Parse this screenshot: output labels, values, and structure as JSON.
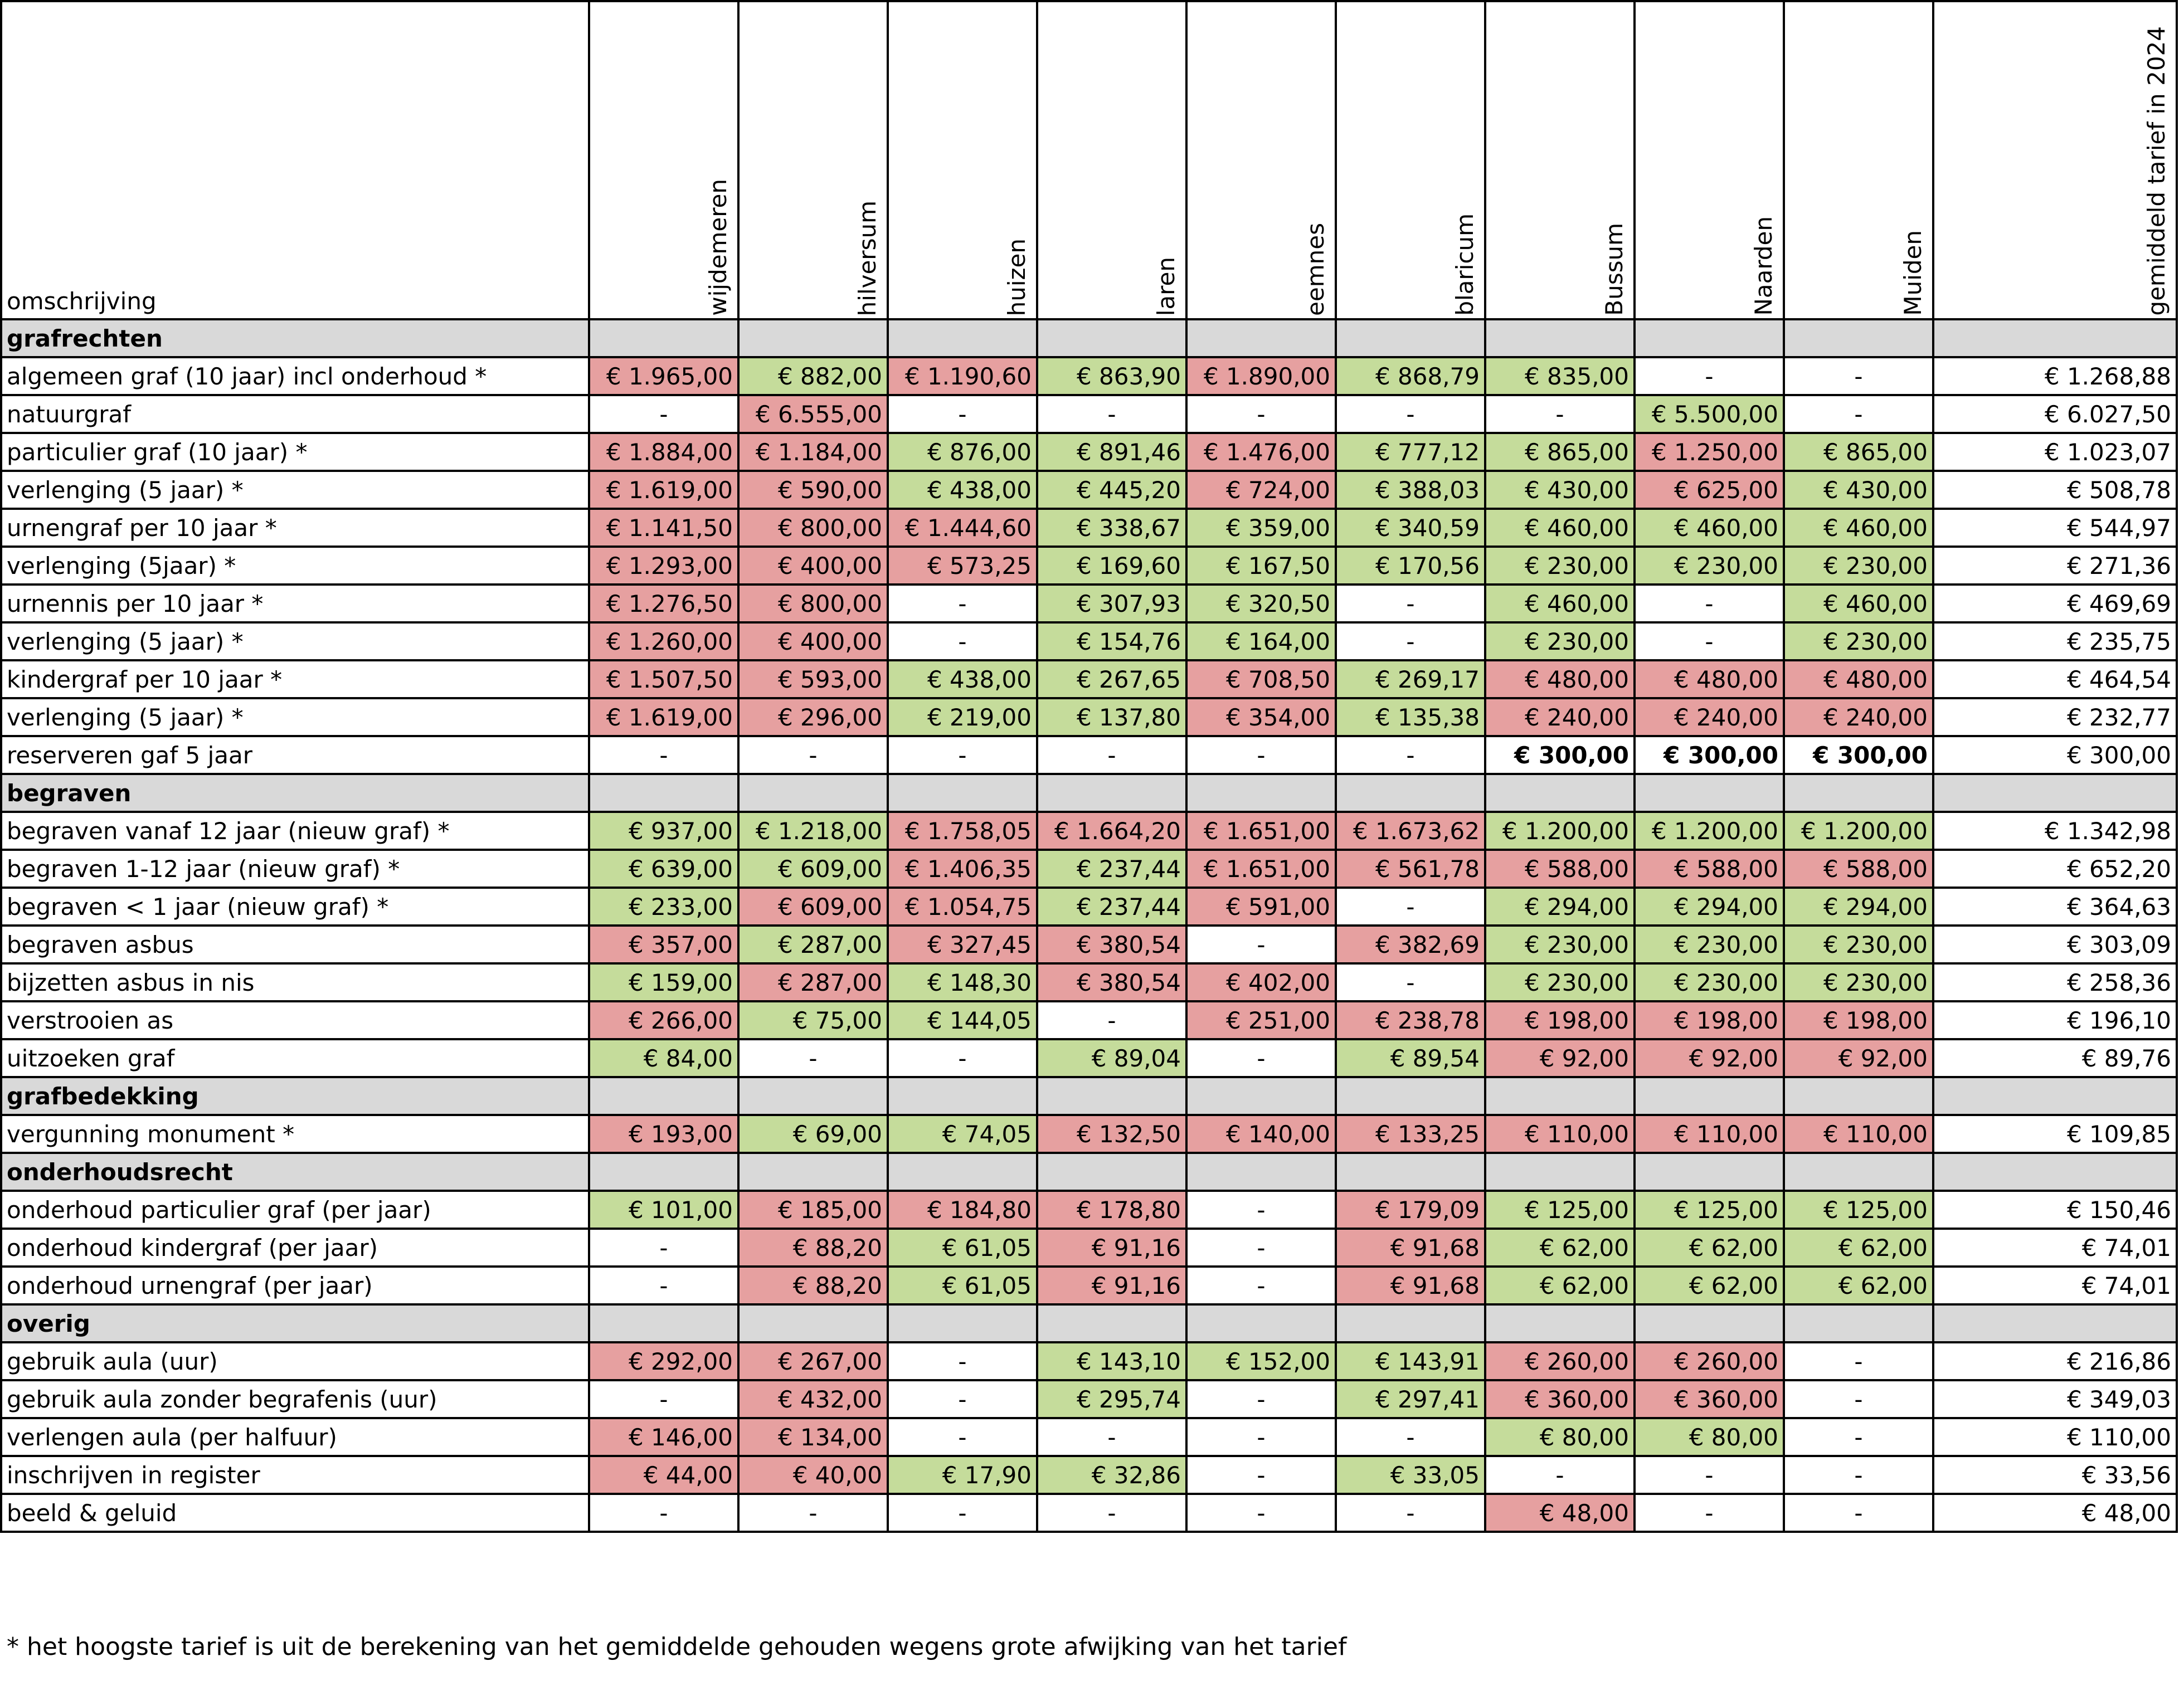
{
  "header": {
    "description_label": "omschrijving",
    "columns": [
      "wijdemeren",
      "hilversum",
      "huizen",
      "laren",
      "eemnes",
      "blaricum",
      "Bussum",
      "Naarden",
      "Muiden"
    ],
    "average_label": "gemiddeld tarief in 2024"
  },
  "legend_colors": {
    "higher_than_average": "#e6a0a0",
    "lower_than_average": "#c5dc9b",
    "section_header": "#d9d9d9"
  },
  "sections": [
    {
      "title": "grafrechten",
      "rows": [
        {
          "label": "algemeen graf (10 jaar) incl onderhoud *",
          "values": [
            "€ 1.965,00",
            "€ 882,00",
            "€ 1.190,60",
            "€ 863,90",
            "€ 1.890,00",
            "€ 868,79",
            "€ 835,00",
            "-",
            "-"
          ],
          "colors": [
            "r",
            "g",
            "r",
            "g",
            "r",
            "g",
            "g",
            "",
            ""
          ],
          "average": "€ 1.268,88"
        },
        {
          "label": "natuurgraf",
          "values": [
            "-",
            "€ 6.555,00",
            "-",
            "-",
            "-",
            "-",
            "-",
            "€ 5.500,00",
            "-"
          ],
          "colors": [
            "",
            "r",
            "",
            "",
            "",
            "",
            "",
            "g",
            ""
          ],
          "average": "€ 6.027,50"
        },
        {
          "label": "particulier graf (10 jaar) *",
          "values": [
            "€ 1.884,00",
            "€ 1.184,00",
            "€ 876,00",
            "€ 891,46",
            "€ 1.476,00",
            "€ 777,12",
            "€ 865,00",
            "€ 1.250,00",
            "€ 865,00"
          ],
          "colors": [
            "r",
            "r",
            "g",
            "g",
            "r",
            "g",
            "g",
            "r",
            "g"
          ],
          "average": "€ 1.023,07"
        },
        {
          "label": "verlenging (5 jaar) *",
          "values": [
            "€ 1.619,00",
            "€ 590,00",
            "€ 438,00",
            "€ 445,20",
            "€ 724,00",
            "€ 388,03",
            "€ 430,00",
            "€ 625,00",
            "€ 430,00"
          ],
          "colors": [
            "r",
            "r",
            "g",
            "g",
            "r",
            "g",
            "g",
            "r",
            "g"
          ],
          "average": "€ 508,78"
        },
        {
          "label": "urnengraf per 10 jaar *",
          "values": [
            "€ 1.141,50",
            "€ 800,00",
            "€ 1.444,60",
            "€ 338,67",
            "€ 359,00",
            "€ 340,59",
            "€ 460,00",
            "€ 460,00",
            "€ 460,00"
          ],
          "colors": [
            "r",
            "r",
            "r",
            "g",
            "g",
            "g",
            "g",
            "g",
            "g"
          ],
          "average": "€ 544,97"
        },
        {
          "label": "verlenging (5jaar) *",
          "values": [
            "€ 1.293,00",
            "€ 400,00",
            "€ 573,25",
            "€ 169,60",
            "€ 167,50",
            "€ 170,56",
            "€ 230,00",
            "€ 230,00",
            "€ 230,00"
          ],
          "colors": [
            "r",
            "r",
            "r",
            "g",
            "g",
            "g",
            "g",
            "g",
            "g"
          ],
          "average": "€ 271,36"
        },
        {
          "label": "urnennis per 10 jaar *",
          "values": [
            "€ 1.276,50",
            "€ 800,00",
            "-",
            "€ 307,93",
            "€ 320,50",
            "-",
            "€ 460,00",
            "-",
            "€ 460,00"
          ],
          "colors": [
            "r",
            "r",
            "",
            "g",
            "g",
            "",
            "g",
            "",
            "g"
          ],
          "average": "€ 469,69"
        },
        {
          "label": "verlenging (5 jaar) *",
          "values": [
            "€ 1.260,00",
            "€ 400,00",
            "-",
            "€ 154,76",
            "€ 164,00",
            "-",
            "€ 230,00",
            "-",
            "€ 230,00"
          ],
          "colors": [
            "r",
            "r",
            "",
            "g",
            "g",
            "",
            "g",
            "",
            "g"
          ],
          "average": "€ 235,75"
        },
        {
          "label": "kindergraf per 10 jaar *",
          "values": [
            "€ 1.507,50",
            "€ 593,00",
            "€ 438,00",
            "€ 267,65",
            "€ 708,50",
            "€ 269,17",
            "€ 480,00",
            "€ 480,00",
            "€ 480,00"
          ],
          "colors": [
            "r",
            "r",
            "g",
            "g",
            "r",
            "g",
            "r",
            "r",
            "r"
          ],
          "average": "€ 464,54"
        },
        {
          "label": "verlenging (5 jaar) *",
          "values": [
            "€ 1.619,00",
            "€ 296,00",
            "€ 219,00",
            "€ 137,80",
            "€ 354,00",
            "€ 135,38",
            "€ 240,00",
            "€ 240,00",
            "€ 240,00"
          ],
          "colors": [
            "r",
            "r",
            "g",
            "g",
            "r",
            "g",
            "r",
            "r",
            "r"
          ],
          "average": "€ 232,77"
        },
        {
          "label": "reserveren gaf 5 jaar",
          "values": [
            "-",
            "-",
            "-",
            "-",
            "-",
            "-",
            "€ 300,00",
            "€ 300,00",
            "€ 300,00"
          ],
          "colors": [
            "",
            "",
            "",
            "",
            "",
            "",
            "b",
            "b",
            "b"
          ],
          "average": "€ 300,00"
        }
      ]
    },
    {
      "title": "begraven",
      "rows": [
        {
          "label": "begraven vanaf 12 jaar (nieuw graf) *",
          "values": [
            "€ 937,00",
            "€ 1.218,00",
            "€ 1.758,05",
            "€ 1.664,20",
            "€ 1.651,00",
            "€ 1.673,62",
            "€ 1.200,00",
            "€ 1.200,00",
            "€ 1.200,00"
          ],
          "colors": [
            "g",
            "g",
            "r",
            "r",
            "r",
            "r",
            "g",
            "g",
            "g"
          ],
          "average": "€ 1.342,98"
        },
        {
          "label": "begraven 1-12 jaar (nieuw graf) *",
          "values": [
            "€ 639,00",
            "€ 609,00",
            "€ 1.406,35",
            "€ 237,44",
            "€ 1.651,00",
            "€ 561,78",
            "€ 588,00",
            "€ 588,00",
            "€ 588,00"
          ],
          "colors": [
            "g",
            "g",
            "r",
            "g",
            "r",
            "r",
            "r",
            "r",
            "r"
          ],
          "average": "€ 652,20"
        },
        {
          "label": "begraven < 1 jaar (nieuw graf) *",
          "values": [
            "€ 233,00",
            "€ 609,00",
            "€ 1.054,75",
            "€ 237,44",
            "€ 591,00",
            "-",
            "€ 294,00",
            "€ 294,00",
            "€ 294,00"
          ],
          "colors": [
            "g",
            "r",
            "r",
            "g",
            "r",
            "",
            "g",
            "g",
            "g"
          ],
          "average": "€ 364,63"
        },
        {
          "label": "begraven asbus",
          "values": [
            "€ 357,00",
            "€ 287,00",
            "€ 327,45",
            "€ 380,54",
            "-",
            "€ 382,69",
            "€ 230,00",
            "€ 230,00",
            "€ 230,00"
          ],
          "colors": [
            "r",
            "g",
            "r",
            "r",
            "",
            "r",
            "g",
            "g",
            "g"
          ],
          "average": "€ 303,09"
        },
        {
          "label": "bijzetten asbus in nis",
          "values": [
            "€ 159,00",
            "€ 287,00",
            "€ 148,30",
            "€ 380,54",
            "€ 402,00",
            "-",
            "€ 230,00",
            "€ 230,00",
            "€ 230,00"
          ],
          "colors": [
            "g",
            "r",
            "g",
            "r",
            "r",
            "",
            "g",
            "g",
            "g"
          ],
          "average": "€ 258,36"
        },
        {
          "label": "verstrooien as",
          "values": [
            "€ 266,00",
            "€ 75,00",
            "€ 144,05",
            "-",
            "€ 251,00",
            "€ 238,78",
            "€ 198,00",
            "€ 198,00",
            "€ 198,00"
          ],
          "colors": [
            "r",
            "g",
            "g",
            "",
            "r",
            "r",
            "r",
            "r",
            "r"
          ],
          "average": "€ 196,10"
        },
        {
          "label": "uitzoeken graf",
          "values": [
            "€ 84,00",
            "-",
            "-",
            "€ 89,04",
            "-",
            "€ 89,54",
            "€ 92,00",
            "€ 92,00",
            "€ 92,00"
          ],
          "colors": [
            "g",
            "",
            "",
            "g",
            "",
            "g",
            "r",
            "r",
            "r"
          ],
          "average": "€ 89,76"
        }
      ]
    },
    {
      "title": "grafbedekking",
      "rows": [
        {
          "label": "vergunning monument *",
          "values": [
            "€ 193,00",
            "€ 69,00",
            "€ 74,05",
            "€ 132,50",
            "€ 140,00",
            "€ 133,25",
            "€ 110,00",
            "€ 110,00",
            "€ 110,00"
          ],
          "colors": [
            "r",
            "g",
            "g",
            "r",
            "r",
            "r",
            "r",
            "r",
            "r"
          ],
          "average": "€ 109,85"
        }
      ]
    },
    {
      "title": "onderhoudsrecht",
      "rows": [
        {
          "label": "onderhoud particulier graf (per jaar)",
          "values": [
            "€ 101,00",
            "€ 185,00",
            "€ 184,80",
            "€ 178,80",
            "-",
            "€ 179,09",
            "€ 125,00",
            "€ 125,00",
            "€ 125,00"
          ],
          "colors": [
            "g",
            "r",
            "r",
            "r",
            "",
            "r",
            "g",
            "g",
            "g"
          ],
          "average": "€ 150,46"
        },
        {
          "label": "onderhoud kindergraf (per jaar)",
          "values": [
            "-",
            "€ 88,20",
            "€ 61,05",
            "€ 91,16",
            "-",
            "€ 91,68",
            "€ 62,00",
            "€ 62,00",
            "€ 62,00"
          ],
          "colors": [
            "",
            "r",
            "g",
            "r",
            "",
            "r",
            "g",
            "g",
            "g"
          ],
          "average": "€ 74,01"
        },
        {
          "label": "onderhoud urnengraf (per jaar)",
          "values": [
            "-",
            "€ 88,20",
            "€ 61,05",
            "€ 91,16",
            "-",
            "€ 91,68",
            "€ 62,00",
            "€ 62,00",
            "€ 62,00"
          ],
          "colors": [
            "",
            "r",
            "g",
            "r",
            "",
            "r",
            "g",
            "g",
            "g"
          ],
          "average": "€ 74,01"
        }
      ]
    },
    {
      "title": "overig",
      "rows": [
        {
          "label": "gebruik aula (uur)",
          "values": [
            "€ 292,00",
            "€ 267,00",
            "-",
            "€ 143,10",
            "€ 152,00",
            "€ 143,91",
            "€ 260,00",
            "€ 260,00",
            "-"
          ],
          "colors": [
            "r",
            "r",
            "",
            "g",
            "g",
            "g",
            "r",
            "r",
            ""
          ],
          "average": "€ 216,86"
        },
        {
          "label": "gebruik aula zonder begrafenis (uur)",
          "values": [
            "-",
            "€ 432,00",
            "-",
            "€ 295,74",
            "-",
            "€ 297,41",
            "€ 360,00",
            "€ 360,00",
            "-"
          ],
          "colors": [
            "",
            "r",
            "",
            "g",
            "",
            "g",
            "r",
            "r",
            ""
          ],
          "average": "€ 349,03"
        },
        {
          "label": "verlengen aula (per halfuur)",
          "values": [
            "€ 146,00",
            "€ 134,00",
            "-",
            "-",
            "-",
            "-",
            "€ 80,00",
            "€ 80,00",
            "-"
          ],
          "colors": [
            "r",
            "r",
            "",
            "",
            "",
            "",
            "g",
            "g",
            ""
          ],
          "average": "€ 110,00"
        },
        {
          "label": "inschrijven in register",
          "values": [
            "€ 44,00",
            "€ 40,00",
            "€ 17,90",
            "€ 32,86",
            "-",
            "€ 33,05",
            "-",
            "-",
            "-"
          ],
          "colors": [
            "r",
            "r",
            "g",
            "g",
            "",
            "g",
            "",
            "",
            ""
          ],
          "average": "€ 33,56"
        },
        {
          "label": "beeld & geluid",
          "values": [
            "-",
            "-",
            "-",
            "-",
            "-",
            "-",
            "€ 48,00",
            "-",
            "-"
          ],
          "colors": [
            "",
            "",
            "",
            "",
            "",
            "",
            "r",
            "",
            ""
          ],
          "average": "€ 48,00"
        }
      ]
    }
  ],
  "footnote": "* het hoogste tarief is uit de berekening van het gemiddelde gehouden wegens grote afwijking van het tarief"
}
